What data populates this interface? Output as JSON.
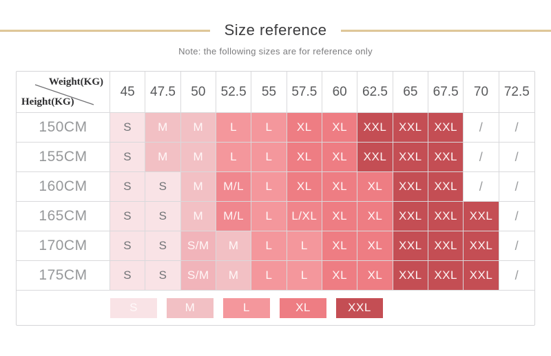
{
  "header": {
    "title": "Size reference",
    "note": "Note: the following sizes are for reference only"
  },
  "chart_data": {
    "type": "table",
    "title": "Size reference",
    "corner_top_label": "Weight(KG)",
    "corner_bottom_label": "Height(KG)",
    "columns": [
      "45",
      "47.5",
      "50",
      "52.5",
      "55",
      "57.5",
      "60",
      "62.5",
      "65",
      "67.5",
      "70",
      "72.5"
    ],
    "rows": [
      "150CM",
      "155CM",
      "160CM",
      "165CM",
      "170CM",
      "175CM"
    ],
    "values": [
      [
        "S",
        "M",
        "M",
        "L",
        "L",
        "XL",
        "XL",
        "XXL",
        "XXL",
        "XXL",
        "/",
        "/"
      ],
      [
        "S",
        "M",
        "M",
        "L",
        "L",
        "XL",
        "XL",
        "XXL",
        "XXL",
        "XXL",
        "/",
        "/"
      ],
      [
        "S",
        "S",
        "M",
        "M/L",
        "L",
        "XL",
        "XL",
        "XL",
        "XXL",
        "XXL",
        "/",
        "/"
      ],
      [
        "S",
        "S",
        "M",
        "M/L",
        "L",
        "L/XL",
        "XL",
        "XL",
        "XXL",
        "XXL",
        "XXL",
        "/"
      ],
      [
        "S",
        "S",
        "S/M",
        "M",
        "L",
        "L",
        "XL",
        "XL",
        "XXL",
        "XXL",
        "XXL",
        "/"
      ],
      [
        "S",
        "S",
        "S/M",
        "M",
        "L",
        "L",
        "XL",
        "XL",
        "XXL",
        "XXL",
        "XXL",
        "/"
      ]
    ],
    "legend_entries": [
      "S",
      "M",
      "L",
      "XL",
      "XXL"
    ],
    "empty_marker": "/"
  },
  "colors": {
    "accent_line": "#d9bd8a",
    "border": "#d9d9db",
    "size_S": "#f9e3e6",
    "size_SM": "#f1b4ba",
    "size_M": "#f2c0c4",
    "size_ML": "#f0878e",
    "size_L": "#f4979c",
    "size_LXL": "#f0858b",
    "size_XL": "#ee7d83",
    "size_XXL": "#c44e54"
  }
}
